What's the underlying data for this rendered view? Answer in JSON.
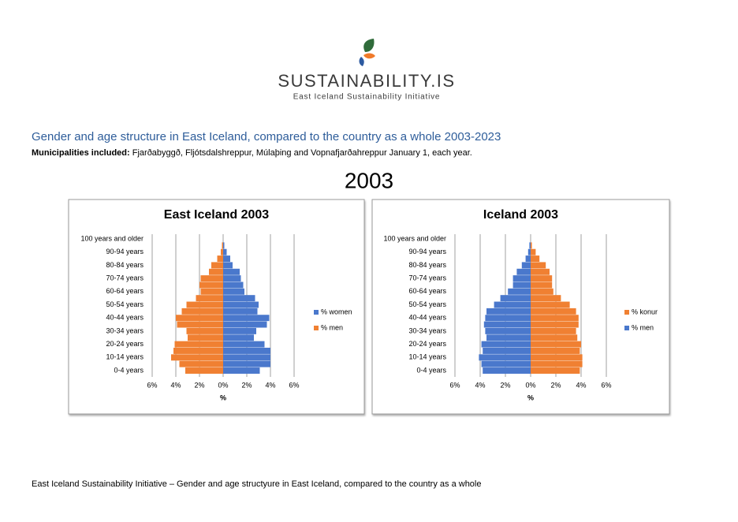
{
  "header": {
    "brand": "SUSTAINABILITY.IS",
    "tagline": "East Iceland Sustainability Initiative"
  },
  "heading": "Gender and age structure in East Iceland, compared to the country as a whole 2003-2023",
  "subheading": {
    "label": "Municipalities included:",
    "text": "Fjarðabyggð, Fljótsdalshreppur, Múlaþing and Vopnafjarðahreppur January 1, each year."
  },
  "year": "2003",
  "footer": "East Iceland Sustainability Initiative – Gender and age structyure in East Iceland, compared to the country as a whole",
  "chart_data": [
    {
      "type": "bar",
      "orientation": "horizontal",
      "title": "East Iceland 2003",
      "x_label": "%",
      "categories": [
        "0-4 years",
        null,
        "10-14 years",
        null,
        "20-24 years",
        null,
        "30-34 years",
        null,
        "40-44 years",
        null,
        "50-54 years",
        null,
        "60-64 years",
        null,
        "70-74 years",
        null,
        "80-84 years",
        null,
        "90-94 years",
        null,
        "100 years and older"
      ],
      "series": [
        {
          "name": "% women",
          "color": "#4a78cc",
          "values": [
            3.1,
            4.0,
            4.0,
            4.0,
            3.5,
            2.6,
            2.8,
            3.7,
            3.9,
            2.9,
            3.0,
            2.7,
            1.8,
            1.7,
            1.5,
            1.4,
            0.8,
            0.6,
            0.3,
            0.1,
            0.0
          ]
        },
        {
          "name": "% men",
          "color": "#f08032",
          "values": [
            -3.2,
            -3.7,
            -4.4,
            -4.2,
            -4.1,
            -3.0,
            -3.1,
            -3.9,
            -4.0,
            -3.5,
            -3.1,
            -2.3,
            -1.9,
            -2.0,
            -1.9,
            -1.2,
            -1.0,
            -0.5,
            -0.2,
            -0.1,
            0.0
          ]
        }
      ],
      "xlim": [
        -6,
        6
      ],
      "xticks": [
        {
          "value": -6,
          "label": "6%"
        },
        {
          "value": -4,
          "label": "4%"
        },
        {
          "value": -2,
          "label": "2%"
        },
        {
          "value": 0,
          "label": "0%"
        },
        {
          "value": 2,
          "label": "2%"
        },
        {
          "value": 4,
          "label": "4%"
        },
        {
          "value": 6,
          "label": "6%"
        }
      ],
      "grid": true,
      "legend": "right"
    },
    {
      "type": "bar",
      "orientation": "horizontal",
      "title": "Iceland 2003",
      "x_label": "%",
      "categories": [
        "0-4 years",
        null,
        "10-14 years",
        null,
        "20-24 years",
        null,
        "30-34 years",
        null,
        "40-44 years",
        null,
        "50-54 years",
        null,
        "60-64 years",
        null,
        "70-74 years",
        null,
        "80-84 years",
        null,
        "90-94 years",
        null,
        "100 years and older"
      ],
      "series": [
        {
          "name": "% konur",
          "color": "#f08032",
          "values": [
            3.9,
            4.1,
            4.1,
            3.9,
            4.0,
            3.7,
            3.6,
            3.8,
            3.8,
            3.6,
            3.1,
            2.4,
            1.8,
            1.7,
            1.7,
            1.5,
            1.2,
            0.7,
            0.4,
            0.1,
            0.0
          ]
        },
        {
          "name": "% men",
          "color": "#4a78cc",
          "values": [
            -3.8,
            -3.9,
            -4.1,
            -3.8,
            -3.9,
            -3.5,
            -3.6,
            -3.7,
            -3.6,
            -3.5,
            -2.9,
            -2.4,
            -1.8,
            -1.4,
            -1.4,
            -1.1,
            -0.7,
            -0.4,
            -0.2,
            -0.1,
            0.0
          ]
        }
      ],
      "xlim": [
        -6,
        6
      ],
      "xticks": [
        {
          "value": -6,
          "label": "6%"
        },
        {
          "value": -4,
          "label": "4%"
        },
        {
          "value": -2,
          "label": "2%"
        },
        {
          "value": 0,
          "label": "0%"
        },
        {
          "value": 2,
          "label": "2%"
        },
        {
          "value": 4,
          "label": "4%"
        },
        {
          "value": 6,
          "label": "6%"
        }
      ],
      "grid": true,
      "legend": "right"
    }
  ]
}
